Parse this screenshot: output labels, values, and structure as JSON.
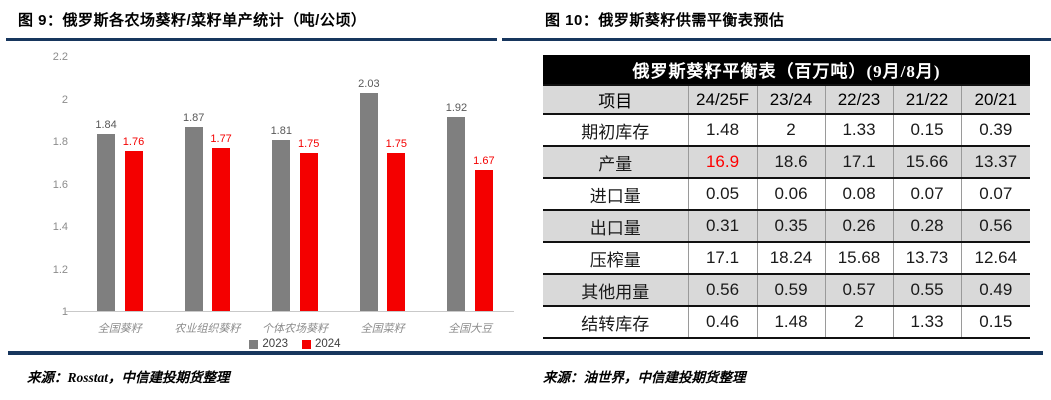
{
  "figure9": {
    "title": "图 9：俄罗斯各农场葵籽/菜籽单产统计（吨/公顷）",
    "source": "来源：Rosstat，中信建投期货整理"
  },
  "figure10": {
    "title": "图 10：俄罗斯葵籽供需平衡表预估",
    "source": "来源：油世界，中信建投期货整理"
  },
  "colors": {
    "accent_rule": "#17365d",
    "bar_2023": "#7f7f7f",
    "bar_2024": "#f40000",
    "label_2023": "#595959",
    "label_2024": "#f40000",
    "table_shade": "#d9d9d9",
    "highlight_red": "#ff0000"
  },
  "chart_data": [
    {
      "type": "bar",
      "title": "俄罗斯各农场葵籽/菜籽单产统计（吨/公顷）",
      "categories": [
        "全国葵籽",
        "农业组织葵籽",
        "个体农场葵籽",
        "全国菜籽",
        "全国大豆"
      ],
      "series": [
        {
          "name": "2023",
          "color": "#7f7f7f",
          "label_color": "#595959",
          "values": [
            1.84,
            1.87,
            1.81,
            2.03,
            1.92
          ]
        },
        {
          "name": "2024",
          "color": "#f40000",
          "label_color": "#f40000",
          "values": [
            1.76,
            1.77,
            1.75,
            1.75,
            1.67
          ]
        }
      ],
      "xlabel": "",
      "ylabel": "",
      "ylim": [
        1,
        2.2
      ],
      "yticks": [
        1,
        1.2,
        1.4,
        1.6,
        1.8,
        2,
        2.2
      ],
      "ytick_labels": [
        "1",
        "1.2",
        "1.4",
        "1.6",
        "1.8",
        "2",
        "2.2"
      ],
      "grid": false,
      "legend_position": "bottom"
    },
    {
      "type": "table",
      "title": "俄罗斯葵籽平衡表（百万吨）(9月/8月)",
      "columns": [
        "项目",
        "24/25F",
        "23/24",
        "22/23",
        "21/22",
        "20/21"
      ],
      "rows": [
        {
          "label": "期初库存",
          "values": [
            "1.48",
            "2",
            "1.33",
            "0.15",
            "0.39"
          ],
          "shaded": false,
          "red_cols": []
        },
        {
          "label": "产量",
          "values": [
            "16.9",
            "18.6",
            "17.1",
            "15.66",
            "13.37"
          ],
          "shaded": true,
          "red_cols": [
            0
          ]
        },
        {
          "label": "进口量",
          "values": [
            "0.05",
            "0.06",
            "0.08",
            "0.07",
            "0.07"
          ],
          "shaded": false,
          "red_cols": []
        },
        {
          "label": "出口量",
          "values": [
            "0.31",
            "0.35",
            "0.26",
            "0.28",
            "0.56"
          ],
          "shaded": true,
          "red_cols": []
        },
        {
          "label": "压榨量",
          "values": [
            "17.1",
            "18.24",
            "15.68",
            "13.73",
            "12.64"
          ],
          "shaded": false,
          "red_cols": []
        },
        {
          "label": "其他用量",
          "values": [
            "0.56",
            "0.59",
            "0.57",
            "0.55",
            "0.49"
          ],
          "shaded": true,
          "red_cols": []
        },
        {
          "label": "结转库存",
          "values": [
            "0.46",
            "1.48",
            "2",
            "1.33",
            "0.15"
          ],
          "shaded": false,
          "red_cols": []
        }
      ]
    }
  ]
}
